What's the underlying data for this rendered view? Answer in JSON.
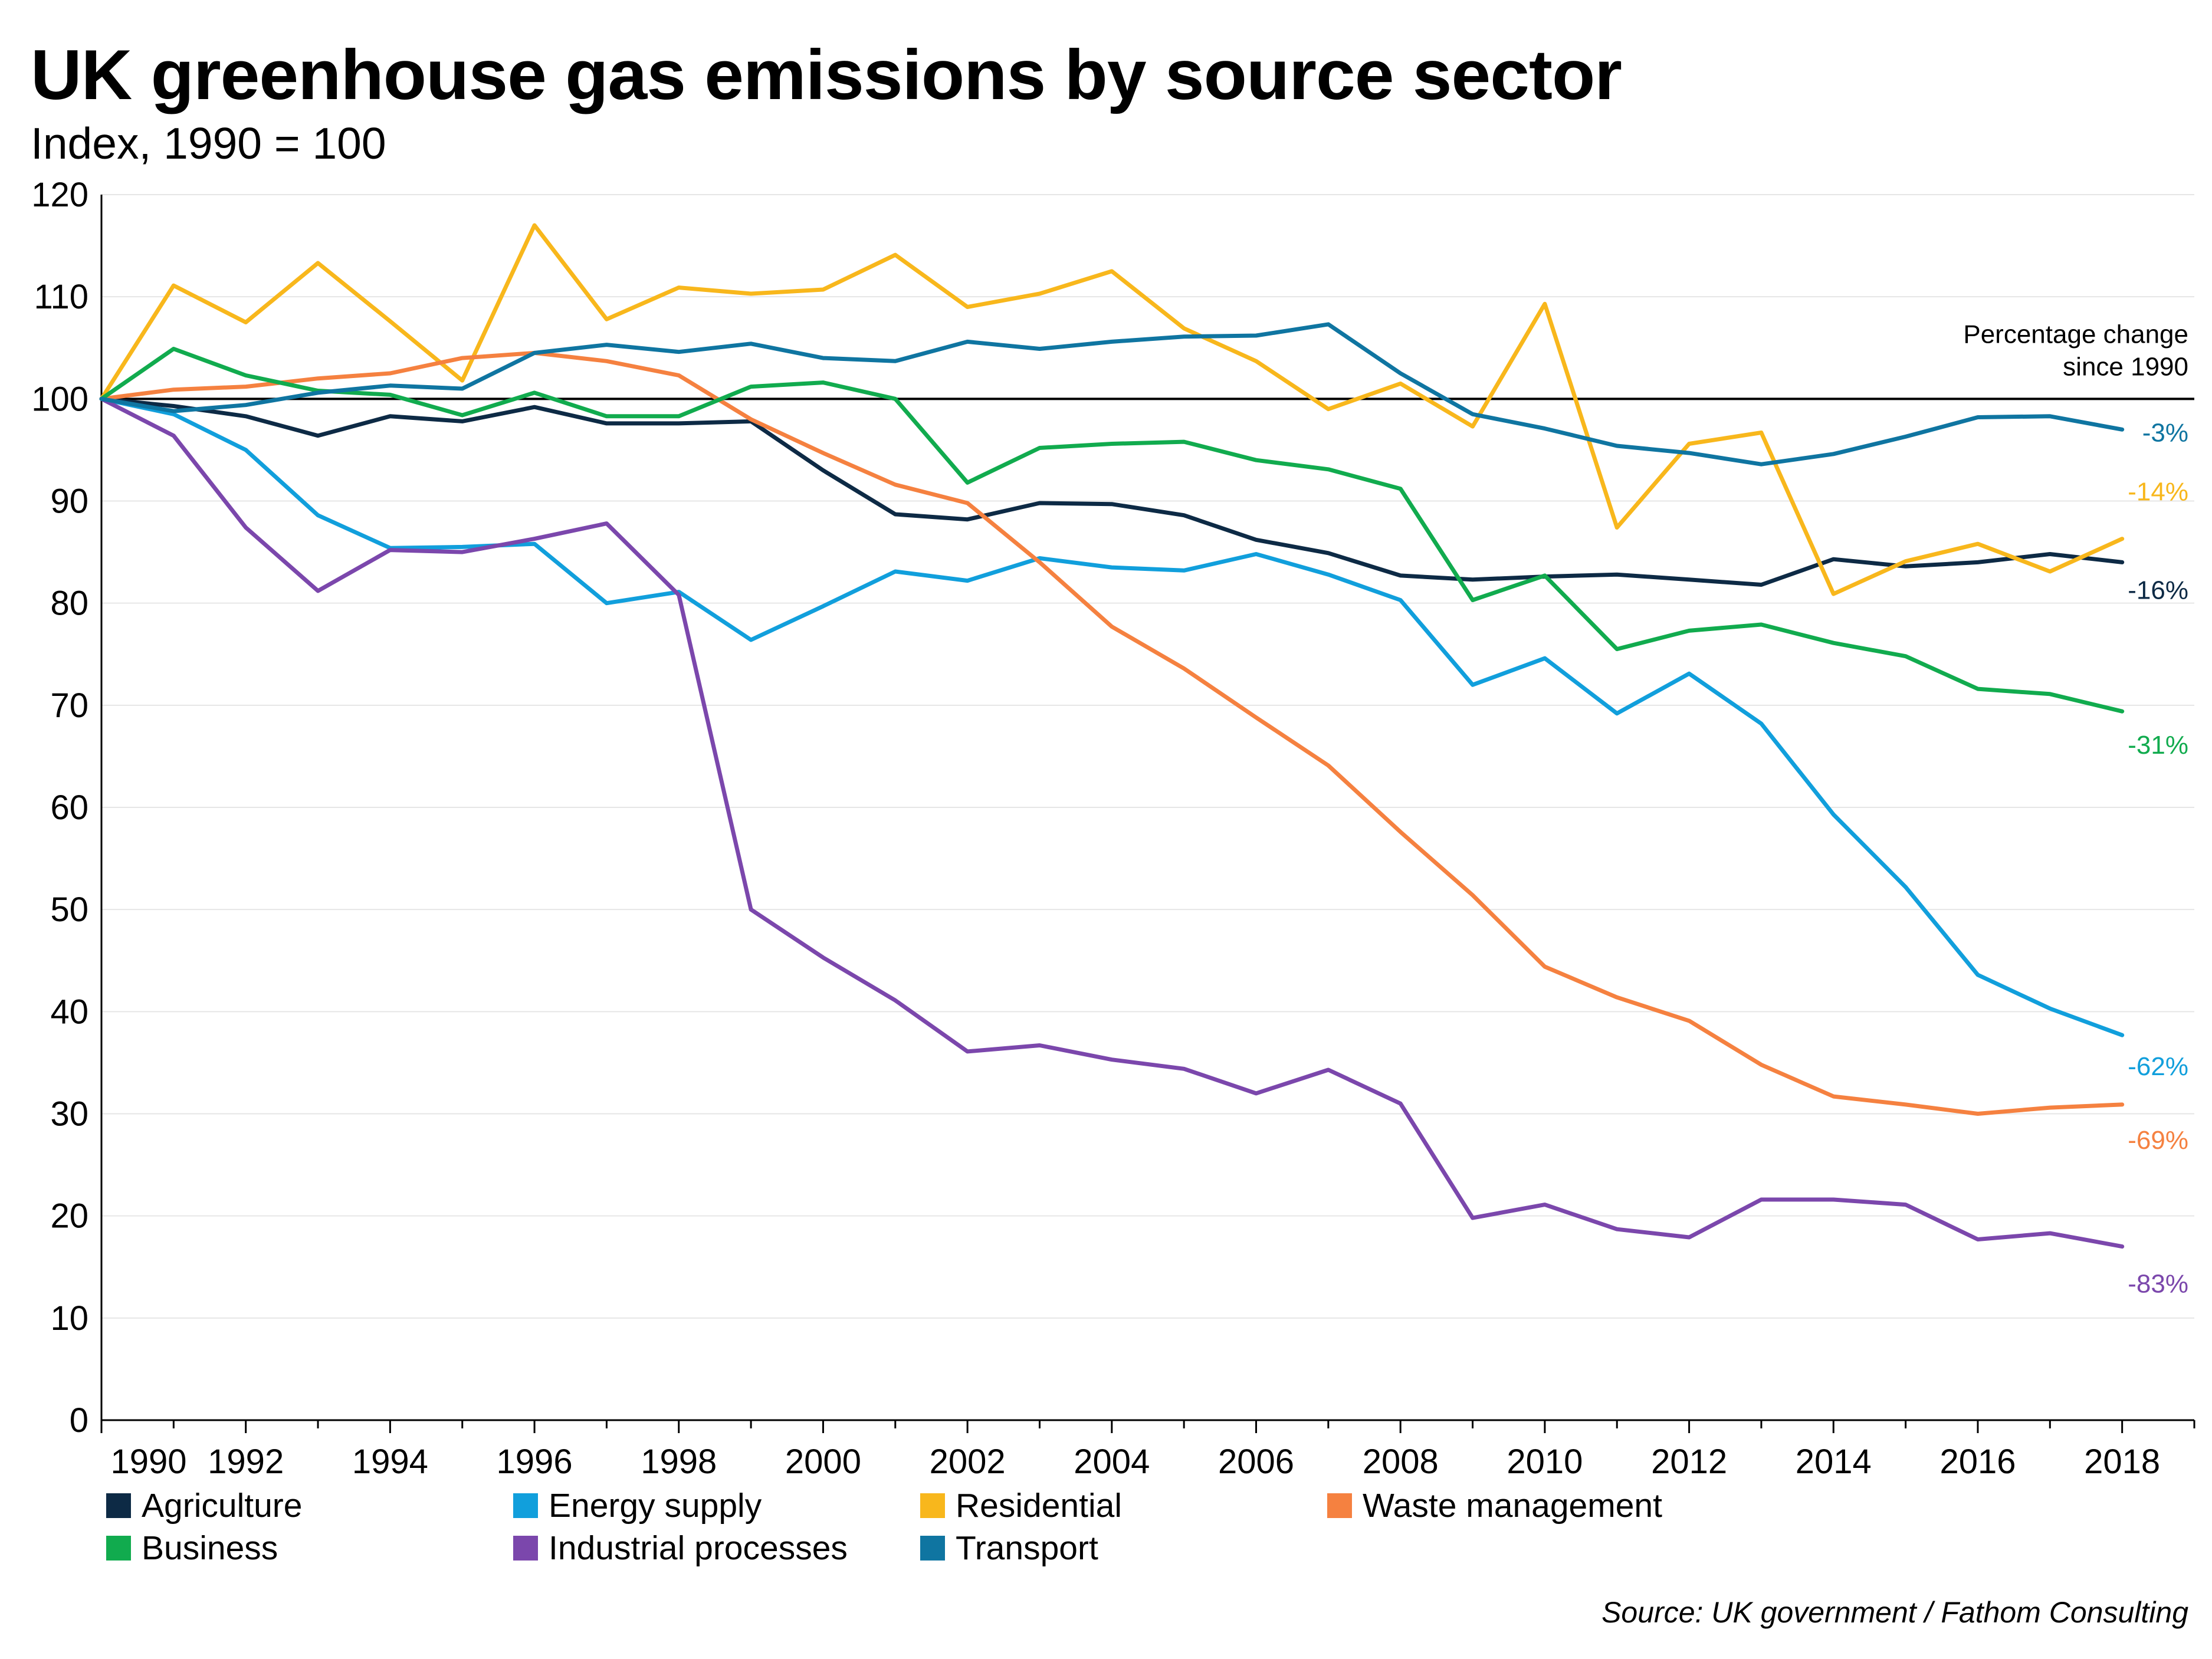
{
  "chart_data": {
    "type": "line",
    "title": "UK greenhouse gas emissions by source sector",
    "subtitle": "Index, 1990 = 100",
    "source": "Source: UK government / Fathom Consulting",
    "annotation": "Percentage change\nsince 1990",
    "ylim": [
      0,
      120
    ],
    "xlim": [
      1990,
      2019
    ],
    "yticks": [
      0,
      10,
      20,
      30,
      40,
      50,
      60,
      70,
      80,
      90,
      100,
      110,
      120
    ],
    "xticks": [
      1990,
      1992,
      1994,
      1996,
      1998,
      2000,
      2002,
      2004,
      2006,
      2008,
      2010,
      2012,
      2014,
      2016,
      2018
    ],
    "reference_line": 100,
    "grid": true,
    "x": [
      1990,
      1991,
      1992,
      1993,
      1994,
      1995,
      1996,
      1997,
      1998,
      1999,
      2000,
      2001,
      2002,
      2003,
      2004,
      2005,
      2006,
      2007,
      2008,
      2009,
      2010,
      2011,
      2012,
      2013,
      2014,
      2015,
      2016,
      2017,
      2018
    ],
    "series": [
      {
        "name": "Agriculture",
        "color": "#0d2a45",
        "end_label": "-16%",
        "values": [
          100,
          99.3,
          98.3,
          96.4,
          98.3,
          97.8,
          99.2,
          97.6,
          97.6,
          97.8,
          93.0,
          88.7,
          88.2,
          89.8,
          89.7,
          88.6,
          86.2,
          84.9,
          82.7,
          82.3,
          82.6,
          82.8,
          82.3,
          81.8,
          84.3,
          83.6,
          84.0,
          84.8,
          84.0
        ]
      },
      {
        "name": "Energy supply",
        "color": "#119fdc",
        "end_label": "-62%",
        "values": [
          100,
          98.5,
          95.0,
          88.6,
          85.4,
          85.5,
          85.8,
          80.0,
          81.1,
          76.4,
          79.7,
          83.1,
          82.2,
          84.4,
          83.5,
          83.2,
          84.8,
          82.8,
          80.3,
          72.0,
          74.6,
          69.2,
          73.1,
          68.2,
          59.3,
          52.2,
          43.6,
          40.3,
          37.7
        ]
      },
      {
        "name": "Residential",
        "color": "#f8b71c",
        "end_label": "-14%",
        "values": [
          100,
          111.1,
          107.5,
          113.3,
          107.6,
          101.8,
          117.0,
          107.8,
          110.9,
          110.3,
          110.7,
          114.1,
          109.0,
          110.3,
          112.5,
          106.9,
          103.7,
          99.0,
          101.5,
          97.3,
          109.3,
          87.4,
          95.6,
          96.7,
          80.9,
          84.1,
          85.8,
          83.1,
          86.3
        ]
      },
      {
        "name": "Waste management",
        "color": "#f58140",
        "end_label": "-69%",
        "values": [
          100,
          100.9,
          101.2,
          102.0,
          102.5,
          104.0,
          104.5,
          103.7,
          102.3,
          98.0,
          94.7,
          91.6,
          89.8,
          84.0,
          77.7,
          73.6,
          68.8,
          64.1,
          57.6,
          51.4,
          44.4,
          41.4,
          39.1,
          34.8,
          31.7,
          30.9,
          30.0,
          30.6,
          30.9
        ]
      },
      {
        "name": "Business",
        "color": "#11ab4e",
        "end_label": "-31%",
        "values": [
          100,
          104.9,
          102.3,
          100.8,
          100.4,
          98.4,
          100.6,
          98.3,
          98.3,
          101.2,
          101.6,
          100.0,
          91.8,
          95.2,
          95.6,
          95.8,
          94.0,
          93.1,
          91.2,
          80.3,
          82.7,
          75.5,
          77.3,
          77.9,
          76.1,
          74.8,
          71.6,
          71.1,
          69.4
        ]
      },
      {
        "name": "Industrial processes",
        "color": "#7b47ac",
        "end_label": "-83%",
        "values": [
          100,
          96.4,
          87.4,
          81.2,
          85.2,
          85.0,
          86.3,
          87.8,
          80.8,
          50.0,
          45.3,
          41.1,
          36.1,
          36.7,
          35.3,
          34.4,
          32.0,
          34.3,
          31.0,
          19.8,
          21.1,
          18.7,
          17.9,
          21.6,
          21.6,
          21.1,
          17.7,
          18.3,
          17.0
        ]
      },
      {
        "name": "Transport",
        "color": "#0f75a1",
        "end_label": "-3%",
        "values": [
          100,
          98.8,
          99.4,
          100.6,
          101.3,
          101.0,
          104.5,
          105.3,
          104.6,
          105.4,
          104.0,
          103.7,
          105.6,
          104.9,
          105.6,
          106.1,
          106.2,
          107.3,
          102.5,
          98.5,
          97.1,
          95.4,
          94.7,
          93.6,
          94.6,
          96.3,
          98.2,
          98.3,
          97.0
        ]
      }
    ],
    "legend": {
      "placement": "bottom",
      "entries": [
        "Agriculture",
        "Energy supply",
        "Residential",
        "Waste management",
        "Business",
        "Industrial processes",
        "Transport"
      ]
    }
  }
}
